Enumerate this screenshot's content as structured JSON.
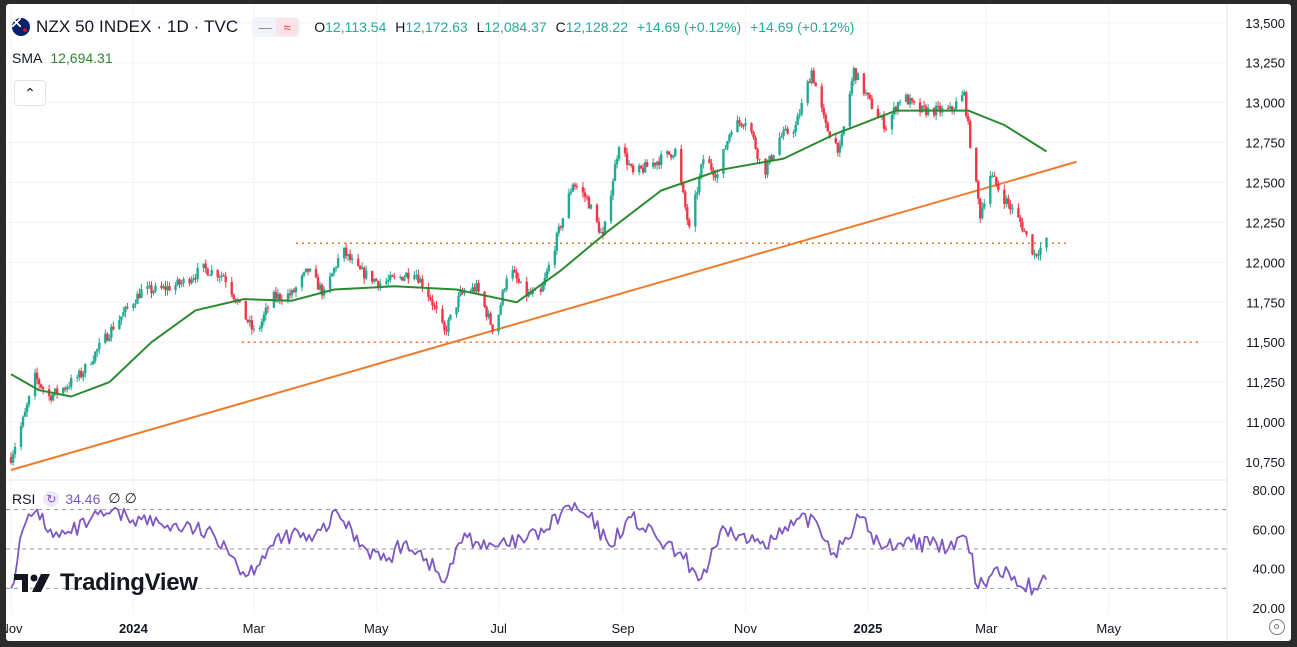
{
  "header": {
    "symbol": "NZX 50 INDEX · 1D · TVC",
    "ohlc": [
      {
        "k": "O",
        "v": "12,113.54"
      },
      {
        "k": "H",
        "v": "12,172.63"
      },
      {
        "k": "L",
        "v": "12,084.37"
      },
      {
        "k": "C",
        "v": "12,128.22"
      }
    ],
    "change": "+14.69 (+0.12%)",
    "change2": "+14.69 (+0.12%)"
  },
  "sma": {
    "label": "SMA",
    "value": "12,694.31"
  },
  "rsi": {
    "label": "RSI",
    "value": "34.46",
    "extra1": "∅",
    "extra2": "∅"
  },
  "logo": {
    "text": "TradingView"
  },
  "colors": {
    "up": "#22ab94",
    "down": "#f23645",
    "sma": "#2a8b2e",
    "trend": "#f07b2c",
    "rsi": "#7e57c2",
    "grid": "#f0f3fa"
  },
  "chart_data": [
    {
      "type": "candlestick",
      "title": "NZX 50 INDEX · 1D · TVC",
      "y_ticks": [
        10750,
        11000,
        11250,
        11500,
        11750,
        12000,
        12250,
        12500,
        12750,
        13000,
        13250,
        13500
      ],
      "y_tick_labels": [
        "10,750",
        "11,000",
        "11,250",
        "11,500",
        "11,750",
        "12,000",
        "12,250",
        "12,500",
        "12,750",
        "13,000",
        "13,250",
        "13,500"
      ],
      "ylim": [
        10650,
        13530
      ],
      "x_range": [
        "2023-11-01",
        "2025-06-15"
      ],
      "x_ticks": [
        {
          "date": "2023-11-01",
          "label": "Nov"
        },
        {
          "date": "2024-01-01",
          "label": "2024"
        },
        {
          "date": "2024-03-01",
          "label": "Mar"
        },
        {
          "date": "2024-05-01",
          "label": "May"
        },
        {
          "date": "2024-07-01",
          "label": "Jul"
        },
        {
          "date": "2024-09-01",
          "label": "Sep"
        },
        {
          "date": "2024-11-01",
          "label": "Nov"
        },
        {
          "date": "2025-01-01",
          "label": "2025"
        },
        {
          "date": "2025-03-01",
          "label": "Mar"
        },
        {
          "date": "2025-05-01",
          "label": "May"
        }
      ],
      "price_path": [
        [
          "2023-11-01",
          10780
        ],
        [
          "2023-11-08",
          11050
        ],
        [
          "2023-11-13",
          11280
        ],
        [
          "2023-11-20",
          11160
        ],
        [
          "2023-11-28",
          11220
        ],
        [
          "2023-12-06",
          11300
        ],
        [
          "2023-12-14",
          11450
        ],
        [
          "2023-12-22",
          11600
        ],
        [
          "2024-01-05",
          11820
        ],
        [
          "2024-01-15",
          11830
        ],
        [
          "2024-01-25",
          11870
        ],
        [
          "2024-02-05",
          11960
        ],
        [
          "2024-02-15",
          11920
        ],
        [
          "2024-02-24",
          11700
        ],
        [
          "2024-03-02",
          11540
        ],
        [
          "2024-03-10",
          11780
        ],
        [
          "2024-03-20",
          11800
        ],
        [
          "2024-03-28",
          11950
        ],
        [
          "2024-04-05",
          11800
        ],
        [
          "2024-04-14",
          12080
        ],
        [
          "2024-04-22",
          11950
        ],
        [
          "2024-05-03",
          11870
        ],
        [
          "2024-05-12",
          11900
        ],
        [
          "2024-05-20",
          11950
        ],
        [
          "2024-05-28",
          11780
        ],
        [
          "2024-06-04",
          11560
        ],
        [
          "2024-06-12",
          11800
        ],
        [
          "2024-06-20",
          11840
        ],
        [
          "2024-06-29",
          11560
        ],
        [
          "2024-07-06",
          11980
        ],
        [
          "2024-07-14",
          11800
        ],
        [
          "2024-07-22",
          11800
        ],
        [
          "2024-07-30",
          12150
        ],
        [
          "2024-08-07",
          12500
        ],
        [
          "2024-08-14",
          12400
        ],
        [
          "2024-08-22",
          12150
        ],
        [
          "2024-08-30",
          12750
        ],
        [
          "2024-09-06",
          12550
        ],
        [
          "2024-09-13",
          12600
        ],
        [
          "2024-09-20",
          12650
        ],
        [
          "2024-09-27",
          12700
        ],
        [
          "2024-10-04",
          12200
        ],
        [
          "2024-10-11",
          12650
        ],
        [
          "2024-10-18",
          12550
        ],
        [
          "2024-10-25",
          12850
        ],
        [
          "2024-11-02",
          12900
        ],
        [
          "2024-11-10",
          12550
        ],
        [
          "2024-11-18",
          12780
        ],
        [
          "2024-11-26",
          12850
        ],
        [
          "2024-12-04",
          13200
        ],
        [
          "2024-12-11",
          12850
        ],
        [
          "2024-12-18",
          12700
        ],
        [
          "2024-12-25",
          13200
        ],
        [
          "2025-01-02",
          13000
        ],
        [
          "2025-01-10",
          12850
        ],
        [
          "2025-01-18",
          13050
        ],
        [
          "2025-01-26",
          12950
        ],
        [
          "2025-02-03",
          12950
        ],
        [
          "2025-02-11",
          12950
        ],
        [
          "2025-02-18",
          13050
        ],
        [
          "2025-02-22",
          12650
        ],
        [
          "2025-02-26",
          12300
        ],
        [
          "2025-03-03",
          12550
        ],
        [
          "2025-03-10",
          12400
        ],
        [
          "2025-03-18",
          12250
        ],
        [
          "2025-03-25",
          12050
        ],
        [
          "2025-03-31",
          12128
        ]
      ],
      "sma": [
        [
          "2023-11-01",
          11300
        ],
        [
          "2023-11-15",
          11200
        ],
        [
          "2023-12-01",
          11160
        ],
        [
          "2023-12-20",
          11250
        ],
        [
          "2024-01-10",
          11500
        ],
        [
          "2024-02-01",
          11700
        ],
        [
          "2024-02-25",
          11770
        ],
        [
          "2024-03-20",
          11760
        ],
        [
          "2024-04-10",
          11830
        ],
        [
          "2024-05-10",
          11850
        ],
        [
          "2024-06-10",
          11830
        ],
        [
          "2024-07-10",
          11750
        ],
        [
          "2024-08-01",
          11950
        ],
        [
          "2024-08-25",
          12200
        ],
        [
          "2024-09-20",
          12450
        ],
        [
          "2024-10-20",
          12580
        ],
        [
          "2024-11-20",
          12650
        ],
        [
          "2024-12-15",
          12800
        ],
        [
          "2025-01-15",
          12950
        ],
        [
          "2025-02-20",
          12950
        ],
        [
          "2025-03-10",
          12860
        ],
        [
          "2025-03-31",
          12694
        ]
      ],
      "levels": [
        {
          "value": 12120,
          "from": "2024-03-22",
          "to": "2025-04-10"
        },
        {
          "value": 11500,
          "from": "2024-02-24",
          "to": "2025-06-15"
        }
      ],
      "trendline": [
        [
          "2023-11-01",
          10700
        ],
        [
          "2025-04-15",
          12630
        ]
      ]
    },
    {
      "type": "line",
      "title": "RSI",
      "y_ticks": [
        20,
        40,
        60,
        80
      ],
      "y_tick_labels": [
        "20.00",
        "40.00",
        "60.00",
        "80.00"
      ],
      "ylim": [
        18,
        84
      ],
      "levels": [
        70,
        50,
        30
      ],
      "rsi_path": [
        [
          "2023-11-01",
          30
        ],
        [
          "2023-11-07",
          60
        ],
        [
          "2023-11-14",
          70
        ],
        [
          "2023-11-22",
          56
        ],
        [
          "2023-12-01",
          58
        ],
        [
          "2023-12-10",
          64
        ],
        [
          "2023-12-20",
          68
        ],
        [
          "2024-01-05",
          65
        ],
        [
          "2024-01-18",
          62
        ],
        [
          "2024-02-01",
          60
        ],
        [
          "2024-02-15",
          54
        ],
        [
          "2024-02-26",
          36
        ],
        [
          "2024-03-08",
          50
        ],
        [
          "2024-03-20",
          58
        ],
        [
          "2024-03-30",
          54
        ],
        [
          "2024-04-12",
          68
        ],
        [
          "2024-04-24",
          52
        ],
        [
          "2024-05-06",
          44
        ],
        [
          "2024-05-16",
          54
        ],
        [
          "2024-05-26",
          45
        ],
        [
          "2024-06-04",
          33
        ],
        [
          "2024-06-14",
          58
        ],
        [
          "2024-06-25",
          50
        ],
        [
          "2024-07-05",
          52
        ],
        [
          "2024-07-15",
          55
        ],
        [
          "2024-07-25",
          60
        ],
        [
          "2024-08-05",
          72
        ],
        [
          "2024-08-15",
          66
        ],
        [
          "2024-08-25",
          52
        ],
        [
          "2024-09-05",
          66
        ],
        [
          "2024-09-18",
          55
        ],
        [
          "2024-10-01",
          45
        ],
        [
          "2024-10-10",
          35
        ],
        [
          "2024-10-22",
          60
        ],
        [
          "2024-11-03",
          54
        ],
        [
          "2024-11-15",
          55
        ],
        [
          "2024-11-25",
          62
        ],
        [
          "2024-12-05",
          66
        ],
        [
          "2024-12-15",
          48
        ],
        [
          "2024-12-28",
          66
        ],
        [
          "2025-01-08",
          50
        ],
        [
          "2025-01-20",
          55
        ],
        [
          "2025-02-01",
          52
        ],
        [
          "2025-02-10",
          50
        ],
        [
          "2025-02-19",
          56
        ],
        [
          "2025-02-25",
          30
        ],
        [
          "2025-03-05",
          40
        ],
        [
          "2025-03-15",
          36
        ],
        [
          "2025-03-25",
          30
        ],
        [
          "2025-03-31",
          34.46
        ]
      ]
    }
  ]
}
